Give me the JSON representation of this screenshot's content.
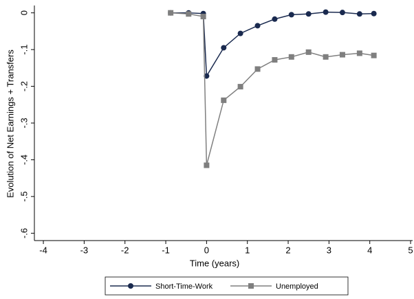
{
  "chart_data": {
    "type": "line",
    "x_label": "Time (years)",
    "y_label": "Evolution of Net Earnings + Transfers",
    "x": [
      -0.88,
      -0.44,
      -0.08,
      0,
      0.42,
      0.83,
      1.25,
      1.67,
      2.08,
      2.5,
      2.92,
      3.33,
      3.75,
      4.1
    ],
    "series": [
      {
        "name": "Short-Time-Work",
        "color": "#1a2a4f",
        "marker": "circle",
        "values": [
          0,
          0,
          -0.002,
          -0.172,
          -0.095,
          -0.056,
          -0.035,
          -0.017,
          -0.005,
          -0.003,
          0.002,
          0.001,
          -0.003,
          -0.002
        ]
      },
      {
        "name": "Unemployed",
        "color": "#7f7f7f",
        "marker": "square",
        "values": [
          0,
          -0.003,
          -0.01,
          -0.415,
          -0.238,
          -0.201,
          -0.153,
          -0.128,
          -0.12,
          -0.107,
          -0.12,
          -0.114,
          -0.11,
          -0.116
        ]
      }
    ],
    "xlim": [
      -4.22,
      5.05
    ],
    "xticks": [
      -4,
      -3,
      -2,
      -1,
      0,
      1,
      2,
      3,
      4,
      5
    ],
    "ylim": [
      -0.62,
      0.02
    ],
    "yticks": [
      0,
      {
        "value": -0.1,
        "label": "-.1"
      },
      {
        "value": -0.2,
        "label": "-.2"
      },
      {
        "value": -0.3,
        "label": "-.3"
      },
      {
        "value": -0.4,
        "label": "-.4"
      },
      {
        "value": -0.5,
        "label": "-.5"
      },
      {
        "value": -0.6,
        "label": "-.6"
      }
    ],
    "legend": "bottom"
  }
}
